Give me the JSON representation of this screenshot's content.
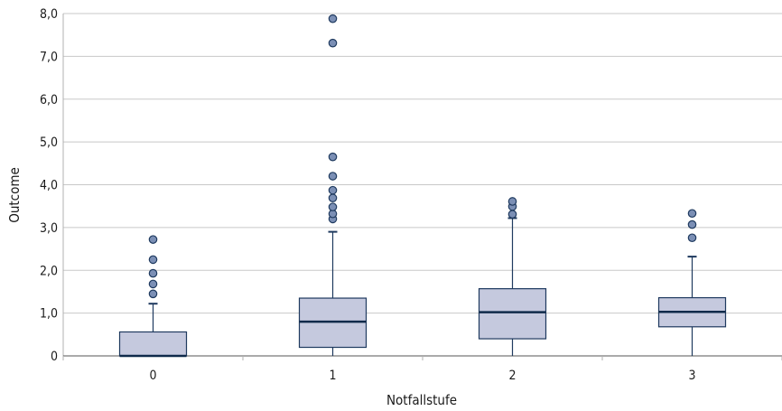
{
  "chart_data": {
    "type": "boxplot",
    "xlabel": "Notfallstufe",
    "ylabel": "Outcome",
    "ylim": [
      0,
      8
    ],
    "yticks": [
      "0",
      "1,0",
      "2,0",
      "3,0",
      "4,0",
      "5,0",
      "6,0",
      "7,0",
      "8,0"
    ],
    "grid": true,
    "colors": {
      "box_fill": "#c5c9de",
      "box_stroke": "#1f3a5f",
      "median": "#0f2a4a",
      "outlier_fill": "#7b8fb5",
      "grid": "#c8c8c8"
    },
    "categories": [
      "0",
      "1",
      "2",
      "3"
    ],
    "boxes": [
      {
        "category": "0",
        "whisker_low": 0.0,
        "q1": 0.0,
        "median": 0.0,
        "q3": 0.56,
        "whisker_high": 1.22,
        "outliers": [
          1.45,
          1.68,
          1.93,
          2.25,
          2.72
        ]
      },
      {
        "category": "1",
        "whisker_low": 0.0,
        "q1": 0.2,
        "median": 0.8,
        "q3": 1.35,
        "whisker_high": 2.9,
        "outliers": [
          3.2,
          3.32,
          3.48,
          3.69,
          3.87,
          4.2,
          4.65,
          7.31,
          7.88
        ]
      },
      {
        "category": "2",
        "whisker_low": 0.0,
        "q1": 0.4,
        "median": 1.02,
        "q3": 1.57,
        "whisker_high": 3.22,
        "outliers": [
          3.31,
          3.49,
          3.61
        ]
      },
      {
        "category": "3",
        "whisker_low": 0.0,
        "q1": 0.68,
        "median": 1.03,
        "q3": 1.36,
        "whisker_high": 2.32,
        "outliers": [
          2.76,
          3.07,
          3.33
        ]
      }
    ]
  }
}
